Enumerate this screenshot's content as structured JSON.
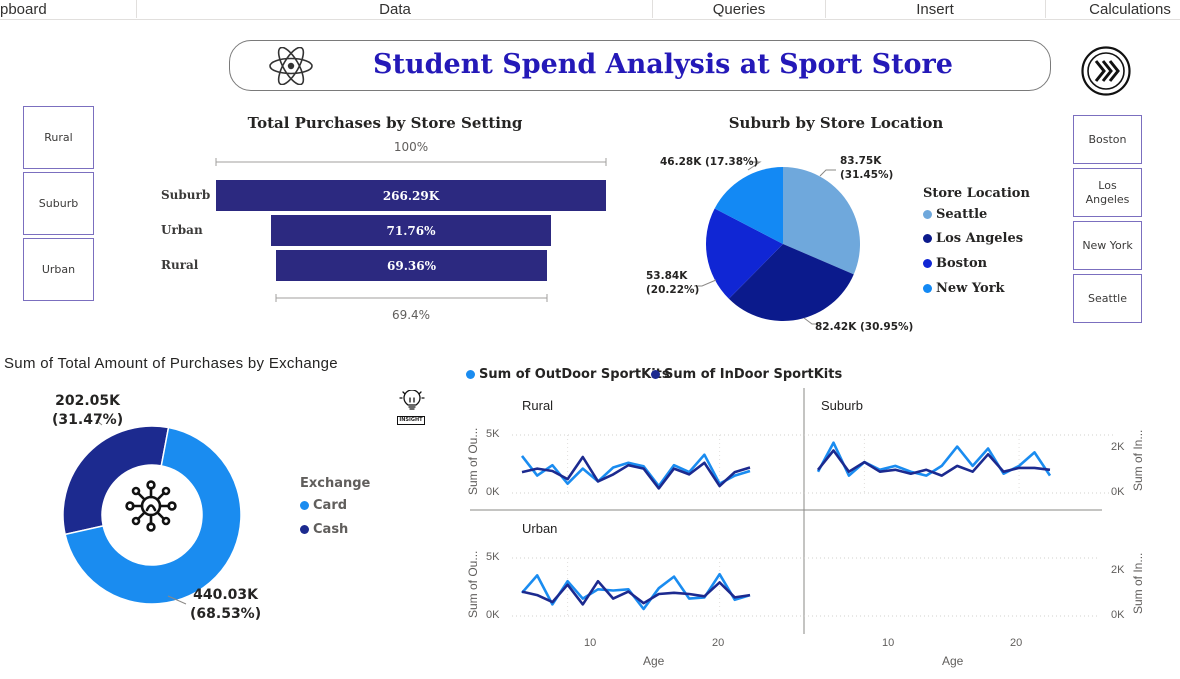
{
  "ribbon": {
    "tabs": [
      "pboard",
      "Data",
      "Queries",
      "Insert",
      "Calculations"
    ]
  },
  "banner": {
    "title": "Student Spend Analysis at Sport Store",
    "title_color": "#2419b8",
    "left_icon": "atom-icon",
    "right_icon": "double-chevron-right-icon"
  },
  "setting_slicer": [
    "Rural",
    "Suburb",
    "Urban"
  ],
  "location_slicer": [
    "Boston",
    "Los Angeles",
    "New York",
    "Seattle"
  ],
  "insight_icon_label": "INSIGHT",
  "funnel": {
    "title": "Total Purchases by Store Setting",
    "top_pct": "100%",
    "bottom_pct": "69.4%",
    "rows": [
      {
        "category": "Suburb",
        "label": "266.29K"
      },
      {
        "category": "Urban",
        "label": "71.76%"
      },
      {
        "category": "Rural",
        "label": "69.36%"
      }
    ],
    "color": "#2c2980"
  },
  "pie": {
    "title": "Suburb by Store Location",
    "legend_title": "Store Location",
    "labels": {
      "seattle": [
        "83.75K",
        "(31.45%)"
      ],
      "los_angeles": "82.42K (30.95%)",
      "boston": [
        "53.84K",
        "(20.22%)"
      ],
      "new_york": "46.28K (17.38%)"
    },
    "legend": [
      "Seattle",
      "Los Angeles",
      "Boston",
      "New York"
    ]
  },
  "donut": {
    "title": "Sum of Total Amount of Purchases by Exchange",
    "cash_label": [
      "202.05K",
      "(31.47%)"
    ],
    "card_label": [
      "440.03K",
      "(68.53%)"
    ],
    "legend_title": "Exchange",
    "legend": [
      "Card",
      "Cash"
    ]
  },
  "small_multiples": {
    "legend": [
      "Sum of OutDoor SportKits",
      "Sum of InDoor SportKits"
    ],
    "panels": [
      "Rural",
      "Suburb",
      "Urban"
    ],
    "left_axis_title": "Sum of Ou...",
    "right_axis_title": "Sum of In...",
    "x_axis_title": "Age",
    "left_ticks": [
      "5K",
      "0K"
    ],
    "right_ticks": [
      "2K",
      "0K"
    ],
    "x_ticks": [
      "10",
      "20"
    ]
  },
  "chart_data": [
    {
      "type": "bar",
      "title": "Total Purchases by Store Setting",
      "categories": [
        "Suburb",
        "Urban",
        "Rural"
      ],
      "values": [
        266.29,
        191.1,
        184.7
      ],
      "data_labels": [
        "266.29K",
        "71.76%",
        "69.36%"
      ],
      "percent_of_first": [
        100,
        71.76,
        69.36
      ],
      "units": "K"
    },
    {
      "type": "pie",
      "title": "Suburb by Store Location",
      "categories": [
        "Seattle",
        "Los Angeles",
        "Boston",
        "New York"
      ],
      "values": [
        83.75,
        82.42,
        53.84,
        46.28
      ],
      "percents": [
        31.45,
        30.95,
        20.22,
        17.38
      ],
      "colors": [
        "#6fa8dc",
        "#0b1a8c",
        "#1026d4",
        "#1389f4"
      ],
      "legend_position": "right"
    },
    {
      "type": "pie",
      "title": "Sum of Total Amount of Purchases by Exchange",
      "categories": [
        "Card",
        "Cash"
      ],
      "values": [
        440.03,
        202.05
      ],
      "percents": [
        68.53,
        31.47
      ],
      "colors": [
        "#1a8cf0",
        "#1c2a8f"
      ],
      "donut": true,
      "legend_position": "right"
    },
    {
      "type": "line",
      "panel": "Rural",
      "x": [
        7,
        8,
        9,
        10,
        11,
        12,
        13,
        14,
        15,
        16,
        17,
        18,
        19,
        20,
        21,
        22
      ],
      "series": [
        {
          "name": "Sum of OutDoor SportKits",
          "values": [
            3.2,
            1.5,
            2.4,
            0.8,
            2.1,
            1.0,
            2.2,
            2.6,
            2.3,
            0.6,
            2.4,
            1.8,
            3.3,
            0.8,
            1.5,
            1.9
          ]
        },
        {
          "name": "Sum of InDoor SportKits",
          "values": [
            1.8,
            2.1,
            1.9,
            1.2,
            3.1,
            1.0,
            1.6,
            2.4,
            2.1,
            0.4,
            2.1,
            1.6,
            2.6,
            0.6,
            1.8,
            2.2
          ]
        }
      ],
      "ylim": [
        0,
        5
      ],
      "y_units": "K"
    },
    {
      "type": "line",
      "panel": "Suburb",
      "x": [
        7,
        8,
        9,
        10,
        11,
        12,
        13,
        14,
        15,
        16,
        17,
        18,
        19,
        20,
        21,
        22
      ],
      "series": [
        {
          "name": "Sum of OutDoor SportKits",
          "values": [
            1.1,
            2.6,
            0.9,
            1.6,
            1.2,
            1.4,
            1.1,
            0.9,
            1.4,
            2.4,
            1.4,
            2.3,
            1.0,
            1.4,
            2.1,
            0.9
          ]
        },
        {
          "name": "Sum of InDoor SportKits",
          "values": [
            1.2,
            2.2,
            1.1,
            1.6,
            1.1,
            1.2,
            1.0,
            1.2,
            0.9,
            1.4,
            1.1,
            2.0,
            1.1,
            1.3,
            1.3,
            1.2
          ]
        }
      ],
      "ylim": [
        0,
        3
      ],
      "y_units": "K"
    },
    {
      "type": "line",
      "panel": "Urban",
      "x": [
        7,
        8,
        9,
        10,
        11,
        12,
        13,
        14,
        15,
        16,
        17,
        18,
        19,
        20,
        21,
        22
      ],
      "series": [
        {
          "name": "Sum of OutDoor SportKits",
          "values": [
            2.0,
            3.5,
            1.0,
            3.0,
            1.5,
            2.3,
            2.2,
            2.3,
            0.6,
            2.4,
            3.4,
            1.5,
            1.6,
            3.6,
            1.4,
            1.8
          ]
        },
        {
          "name": "Sum of InDoor SportKits",
          "values": [
            2.1,
            1.8,
            1.2,
            2.7,
            1.0,
            3.0,
            1.5,
            2.1,
            1.1,
            1.9,
            2.0,
            1.9,
            1.7,
            2.9,
            1.6,
            1.8
          ]
        }
      ],
      "ylim": [
        0,
        5
      ],
      "y_units": "K"
    }
  ]
}
